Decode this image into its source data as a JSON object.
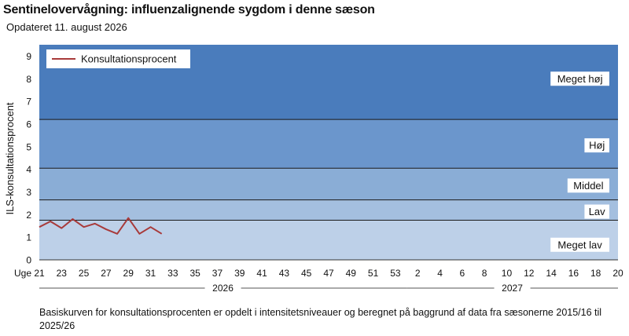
{
  "page": {
    "title": "Sentinelovervågning: influenzalignende sygdom i denne sæson",
    "subtitle": "Opdateret 11. august 2026",
    "footnote": "Basiskurven for konsultationsprocenten er opdelt i intensitetsniveauer og beregnet på baggrund af data fra sæsonerne 2015/16 til 2025/26"
  },
  "chart_data": {
    "type": "line",
    "title": "Sentinelovervågning: influenzalignende sygdom i denne sæson",
    "ylabel": "ILS-konsultationsprocent",
    "x_axis_prefix": "Uge",
    "ylim": [
      0,
      9.5
    ],
    "y_ticks": [
      0,
      1,
      2,
      3,
      4,
      5,
      6,
      7,
      8,
      9
    ],
    "x_tick_labels": [
      "21",
      "23",
      "25",
      "27",
      "29",
      "31",
      "33",
      "35",
      "37",
      "39",
      "41",
      "43",
      "45",
      "47",
      "49",
      "51",
      "53",
      "2",
      "4",
      "6",
      "8",
      "10",
      "12",
      "14",
      "16",
      "18",
      "20"
    ],
    "year_labels": [
      {
        "label": "2026",
        "from_index": 0,
        "to_index": 33
      },
      {
        "label": "2027",
        "from_index": 33,
        "to_index": 52
      }
    ],
    "intensity_bands": [
      {
        "label": "Meget lav",
        "from": 0,
        "to": 1.75,
        "color": "#bdd0e8"
      },
      {
        "label": "Lav",
        "from": 1.75,
        "to": 2.65,
        "color": "#a4bfdf"
      },
      {
        "label": "Middel",
        "from": 2.65,
        "to": 4.05,
        "color": "#8aadd6"
      },
      {
        "label": "Høj",
        "from": 4.05,
        "to": 6.2,
        "color": "#6b96cc"
      },
      {
        "label": "Meget høj",
        "from": 6.2,
        "to": 9.5,
        "color": "#4a7cbc"
      }
    ],
    "series": [
      {
        "name": "Konsultationsprocent",
        "color": "#a83a3a",
        "weeks": [
          "21",
          "22",
          "23",
          "24",
          "25",
          "26",
          "27",
          "28",
          "29",
          "30",
          "31",
          "32"
        ],
        "values": [
          1.45,
          1.7,
          1.4,
          1.8,
          1.45,
          1.6,
          1.35,
          1.15,
          1.85,
          1.15,
          1.45,
          1.15
        ]
      }
    ],
    "legend_position": "top-left",
    "grid": false
  }
}
